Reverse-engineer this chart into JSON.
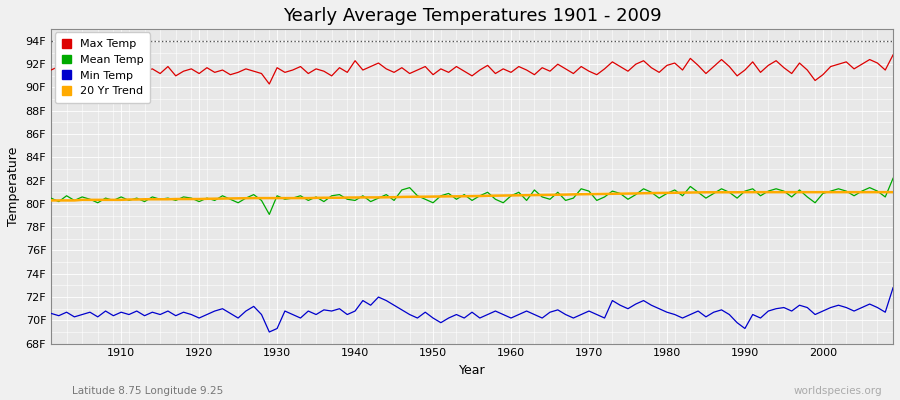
{
  "title": "Yearly Average Temperatures 1901 - 2009",
  "ylabel": "Temperature",
  "xlabel": "Year",
  "lat_lon_label": "Latitude 8.75 Longitude 9.25",
  "watermark": "worldspecies.org",
  "years": [
    1901,
    1902,
    1903,
    1904,
    1905,
    1906,
    1907,
    1908,
    1909,
    1910,
    1911,
    1912,
    1913,
    1914,
    1915,
    1916,
    1917,
    1918,
    1919,
    1920,
    1921,
    1922,
    1923,
    1924,
    1925,
    1926,
    1927,
    1928,
    1929,
    1930,
    1931,
    1932,
    1933,
    1934,
    1935,
    1936,
    1937,
    1938,
    1939,
    1940,
    1941,
    1942,
    1943,
    1944,
    1945,
    1946,
    1947,
    1948,
    1949,
    1950,
    1951,
    1952,
    1953,
    1954,
    1955,
    1956,
    1957,
    1958,
    1959,
    1960,
    1961,
    1962,
    1963,
    1964,
    1965,
    1966,
    1967,
    1968,
    1969,
    1970,
    1971,
    1972,
    1973,
    1974,
    1975,
    1976,
    1977,
    1978,
    1979,
    1980,
    1981,
    1982,
    1983,
    1984,
    1985,
    1986,
    1987,
    1988,
    1989,
    1990,
    1991,
    1992,
    1993,
    1994,
    1995,
    1996,
    1997,
    1998,
    1999,
    2000,
    2001,
    2002,
    2003,
    2004,
    2005,
    2006,
    2007,
    2008,
    2009
  ],
  "max_temp": [
    91.5,
    91.8,
    91.2,
    91.6,
    91.4,
    91.9,
    91.1,
    91.7,
    91.3,
    91.5,
    91.3,
    91.0,
    91.4,
    91.6,
    91.2,
    91.8,
    91.0,
    91.4,
    91.6,
    91.2,
    91.7,
    91.3,
    91.5,
    91.1,
    91.3,
    91.6,
    91.4,
    91.2,
    90.3,
    91.7,
    91.3,
    91.5,
    91.8,
    91.2,
    91.6,
    91.4,
    91.0,
    91.7,
    91.3,
    92.3,
    91.5,
    91.8,
    92.1,
    91.6,
    91.3,
    91.7,
    91.2,
    91.5,
    91.8,
    91.1,
    91.6,
    91.3,
    91.8,
    91.4,
    91.0,
    91.5,
    91.9,
    91.2,
    91.6,
    91.3,
    91.8,
    91.5,
    91.1,
    91.7,
    91.4,
    92.0,
    91.6,
    91.2,
    91.8,
    91.4,
    91.1,
    91.6,
    92.2,
    91.8,
    91.4,
    92.0,
    92.3,
    91.7,
    91.3,
    91.9,
    92.1,
    91.5,
    92.5,
    91.9,
    91.2,
    91.8,
    92.4,
    91.8,
    91.0,
    91.5,
    92.2,
    91.3,
    91.9,
    92.3,
    91.7,
    91.2,
    92.1,
    91.5,
    90.6,
    91.1,
    91.8,
    92.0,
    92.2,
    91.6,
    92.0,
    92.4,
    92.1,
    91.5,
    92.8
  ],
  "mean_temp": [
    80.5,
    80.2,
    80.7,
    80.3,
    80.6,
    80.4,
    80.1,
    80.5,
    80.3,
    80.6,
    80.3,
    80.5,
    80.2,
    80.6,
    80.4,
    80.5,
    80.3,
    80.6,
    80.5,
    80.2,
    80.5,
    80.3,
    80.7,
    80.4,
    80.1,
    80.5,
    80.8,
    80.3,
    79.1,
    80.7,
    80.4,
    80.5,
    80.7,
    80.3,
    80.6,
    80.2,
    80.7,
    80.8,
    80.4,
    80.3,
    80.7,
    80.2,
    80.5,
    80.8,
    80.3,
    81.2,
    81.4,
    80.7,
    80.4,
    80.1,
    80.7,
    80.9,
    80.4,
    80.8,
    80.3,
    80.7,
    81.0,
    80.4,
    80.1,
    80.7,
    81.0,
    80.3,
    81.2,
    80.6,
    80.4,
    81.0,
    80.3,
    80.5,
    81.3,
    81.1,
    80.3,
    80.6,
    81.1,
    80.9,
    80.4,
    80.8,
    81.3,
    81.0,
    80.5,
    80.9,
    81.2,
    80.7,
    81.5,
    81.0,
    80.5,
    80.9,
    81.3,
    81.0,
    80.5,
    81.1,
    81.3,
    80.7,
    81.1,
    81.3,
    81.1,
    80.6,
    81.2,
    80.6,
    80.1,
    80.9,
    81.1,
    81.3,
    81.1,
    80.7,
    81.1,
    81.4,
    81.1,
    80.6,
    82.2
  ],
  "min_temp": [
    70.6,
    70.4,
    70.7,
    70.3,
    70.5,
    70.7,
    70.3,
    70.8,
    70.4,
    70.7,
    70.5,
    70.8,
    70.4,
    70.7,
    70.5,
    70.8,
    70.4,
    70.7,
    70.5,
    70.2,
    70.5,
    70.8,
    71.0,
    70.6,
    70.2,
    70.8,
    71.2,
    70.5,
    69.0,
    69.3,
    70.8,
    70.5,
    70.2,
    70.8,
    70.5,
    70.9,
    70.8,
    71.0,
    70.5,
    70.8,
    71.7,
    71.3,
    72.0,
    71.7,
    71.3,
    70.9,
    70.5,
    70.2,
    70.7,
    70.2,
    69.8,
    70.2,
    70.5,
    70.2,
    70.7,
    70.2,
    70.5,
    70.8,
    70.5,
    70.2,
    70.5,
    70.8,
    70.5,
    70.2,
    70.7,
    70.9,
    70.5,
    70.2,
    70.5,
    70.8,
    70.5,
    70.2,
    71.7,
    71.3,
    71.0,
    71.4,
    71.7,
    71.3,
    71.0,
    70.7,
    70.5,
    70.2,
    70.5,
    70.8,
    70.3,
    70.7,
    70.9,
    70.5,
    69.8,
    69.3,
    70.5,
    70.2,
    70.8,
    71.0,
    71.1,
    70.8,
    71.3,
    71.1,
    70.5,
    70.8,
    71.1,
    71.3,
    71.1,
    70.8,
    71.1,
    71.4,
    71.1,
    70.7,
    72.8
  ],
  "trend_20yr": [
    80.3,
    80.3,
    80.3,
    80.3,
    80.35,
    80.35,
    80.35,
    80.35,
    80.35,
    80.35,
    80.38,
    80.38,
    80.4,
    80.4,
    80.4,
    80.4,
    80.42,
    80.42,
    80.42,
    80.42,
    80.44,
    80.45,
    80.46,
    80.47,
    80.48,
    80.49,
    80.5,
    80.5,
    80.5,
    80.5,
    80.5,
    80.5,
    80.5,
    80.5,
    80.52,
    80.53,
    80.53,
    80.53,
    80.55,
    80.55,
    80.56,
    80.56,
    80.56,
    80.57,
    80.58,
    80.6,
    80.61,
    80.62,
    80.62,
    80.63,
    80.64,
    80.65,
    80.65,
    80.66,
    80.67,
    80.68,
    80.7,
    80.71,
    80.72,
    80.73,
    80.74,
    80.75,
    80.76,
    80.77,
    80.78,
    80.79,
    80.8,
    80.82,
    80.83,
    80.84,
    80.85,
    80.86,
    80.87,
    80.88,
    80.89,
    80.9,
    80.92,
    80.93,
    80.94,
    80.95,
    80.96,
    80.97,
    80.98,
    80.99,
    81.0,
    81.0,
    81.0,
    81.0,
    81.0,
    81.01,
    81.01,
    81.01,
    81.01,
    81.01,
    81.01,
    81.01,
    81.01,
    81.01,
    81.01,
    81.01,
    81.01,
    81.01,
    81.01,
    81.01,
    81.01,
    81.01,
    81.01,
    81.01,
    81.01
  ],
  "max_color": "#dd0000",
  "mean_color": "#00aa00",
  "min_color": "#0000cc",
  "trend_color": "#ffaa00",
  "dotted_line_y": 94,
  "dotted_line_color": "#555555",
  "bg_color": "#f0f0f0",
  "plot_bg_color": "#e8e8e8",
  "grid_color": "#ffffff",
  "ylim": [
    68,
    95
  ],
  "yticks": [
    68,
    70,
    72,
    74,
    76,
    78,
    80,
    82,
    84,
    86,
    88,
    90,
    92,
    94
  ],
  "ytick_labels": [
    "68F",
    "70F",
    "72F",
    "74F",
    "76F",
    "78F",
    "80F",
    "82F",
    "84F",
    "86F",
    "88F",
    "90F",
    "92F",
    "94F"
  ],
  "xlim": [
    1901,
    2009
  ],
  "xticks": [
    1910,
    1920,
    1930,
    1940,
    1950,
    1960,
    1970,
    1980,
    1990,
    2000
  ],
  "title_fontsize": 13,
  "legend_entries": [
    "Max Temp",
    "Mean Temp",
    "Min Temp",
    "20 Yr Trend"
  ],
  "legend_colors": [
    "#dd0000",
    "#00aa00",
    "#0000cc",
    "#ffaa00"
  ]
}
